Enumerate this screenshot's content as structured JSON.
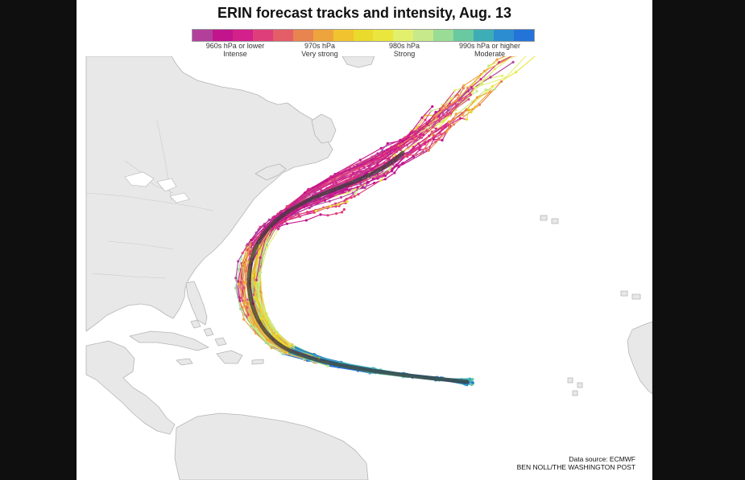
{
  "title": "ERIN forecast tracks and intensity, Aug. 13",
  "legend": {
    "colors": [
      "#b2409a",
      "#c2148c",
      "#d3208a",
      "#de3f7a",
      "#e45e68",
      "#e8844f",
      "#eea43c",
      "#f1c32e",
      "#e9da2c",
      "#eae63e",
      "#e3f06d",
      "#c7e98c",
      "#99dc96",
      "#69c9a0",
      "#3eaeb6",
      "#2c8ed0",
      "#2473d8"
    ],
    "labels": [
      {
        "hpa": "960s hPa or lower",
        "name": "Intense"
      },
      {
        "hpa": "970s hPa",
        "name": "Very strong"
      },
      {
        "hpa": "980s hPa",
        "name": "Strong"
      },
      {
        "hpa": "990s hPa or higher",
        "name": "Moderate"
      }
    ]
  },
  "credit": {
    "source": "Data source: ECMWF",
    "byline": "BEN NOLL/THE WASHINGTON POST"
  },
  "colors": {
    "land": "#e8e8e8",
    "land_stroke": "#b5b5b5",
    "ocean": "#ffffff",
    "ensemble_mean": "#3a3a3a"
  }
}
